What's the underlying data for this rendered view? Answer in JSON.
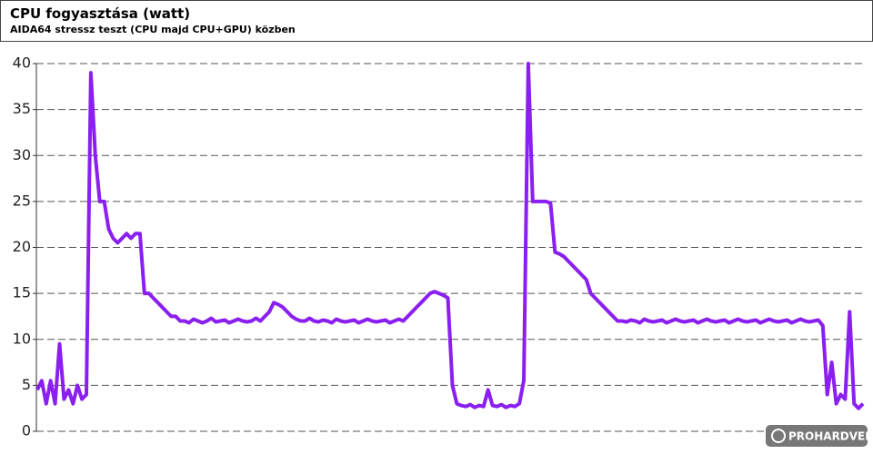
{
  "chart_data": {
    "type": "line",
    "title": "CPU fogyasztása (watt)",
    "subtitle": "AIDA64 stressz teszt (CPU majd CPU+GPU) közben",
    "watermark": "PROHARDVER!",
    "series": [
      {
        "name": "CPU",
        "color": "#8a1ff0",
        "values": [
          4.5,
          5.5,
          3,
          5.5,
          3,
          9.5,
          3.5,
          4.5,
          3,
          5,
          3.5,
          4,
          39,
          30,
          25,
          25,
          22,
          21,
          20.5,
          21,
          21.5,
          21,
          21.5,
          21.5,
          15,
          15,
          14.5,
          14,
          13.5,
          13,
          12.5,
          12.5,
          12,
          12,
          11.8,
          12.2,
          12,
          11.8,
          12,
          12.3,
          11.9,
          12,
          12.1,
          11.8,
          12,
          12.2,
          12,
          11.9,
          12,
          12.3,
          12,
          12.5,
          13,
          14,
          13.8,
          13.5,
          13,
          12.5,
          12.2,
          12,
          12,
          12.3,
          12,
          11.9,
          12.1,
          12,
          11.8,
          12.2,
          12,
          11.9,
          12,
          12.1,
          11.8,
          12,
          12.2,
          12,
          11.9,
          12,
          12.1,
          11.8,
          12,
          12.2,
          12,
          12.5,
          13,
          13.5,
          14,
          14.5,
          15,
          15.2,
          15,
          14.8,
          14.5,
          5,
          3,
          2.8,
          2.7,
          2.9,
          2.6,
          2.8,
          2.7,
          4.5,
          2.8,
          2.7,
          2.9,
          2.6,
          2.8,
          2.7,
          3,
          5.5,
          40,
          25,
          25,
          25,
          25,
          24.8,
          19.5,
          19.3,
          19,
          18.5,
          18,
          17.5,
          17,
          16.5,
          15,
          14.5,
          14,
          13.5,
          13,
          12.5,
          12,
          12,
          11.9,
          12.1,
          12,
          11.8,
          12.2,
          12,
          11.9,
          12,
          12.1,
          11.8,
          12,
          12.2,
          12,
          11.9,
          12,
          12.1,
          11.8,
          12,
          12.2,
          12,
          11.9,
          12,
          12.1,
          11.8,
          12,
          12.2,
          12,
          11.9,
          12,
          12.1,
          11.8,
          12,
          12.2,
          12,
          11.9,
          12,
          12.1,
          11.8,
          12,
          12.2,
          12,
          11.9,
          12,
          12.1,
          11.5,
          4,
          7.5,
          3,
          4,
          3.5,
          13,
          3,
          2.5,
          3
        ]
      }
    ],
    "ylim": [
      0,
      40
    ],
    "yticks": [
      0,
      5,
      10,
      15,
      20,
      25,
      30,
      35,
      40
    ],
    "grid": true
  }
}
